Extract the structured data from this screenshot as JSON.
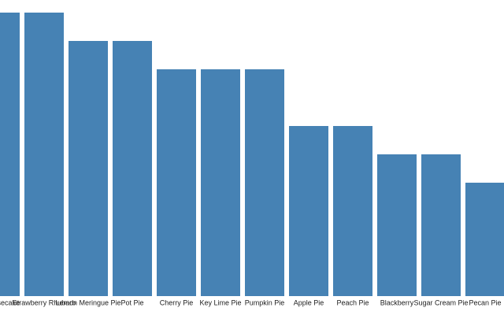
{
  "chart_data": {
    "type": "bar",
    "categories": [
      "Cheesecake",
      "Strawberry Rhubarb",
      "Lemon Meringue Pie",
      "Pot Pie",
      "Cherry Pie",
      "Key Lime Pie",
      "Pumpkin Pie",
      "Apple Pie",
      "Peach Pie",
      "Blackberry",
      "Sugar Cream Pie",
      "Pecan Pie"
    ],
    "values": [
      10,
      10,
      9,
      9,
      8,
      8,
      8,
      6,
      6,
      5,
      5,
      4
    ],
    "color": "#4682b4"
  }
}
